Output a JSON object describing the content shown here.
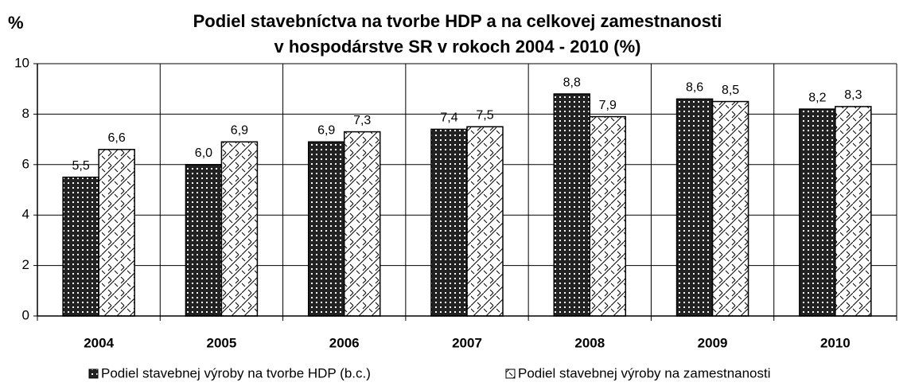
{
  "chart_data": {
    "type": "bar",
    "title": [
      "Podiel stavebníctva na tvorbe HDP a na celkovej zamestnanosti",
      "v hospodárstve SR v rokoch 2004 - 2010 (%)"
    ],
    "ylabel": "%",
    "categories": [
      "2004",
      "2005",
      "2006",
      "2007",
      "2008",
      "2009",
      "2010"
    ],
    "series": [
      {
        "name": "Podiel stavebnej výroby na tvorbe HDP (b.c.)",
        "color": "#222222",
        "values": [
          5.5,
          6.0,
          6.9,
          7.4,
          8.8,
          8.6,
          8.2
        ],
        "value_labels": [
          "5,5",
          "6,0",
          "6,9",
          "7,4",
          "8,8",
          "8,6",
          "8,2"
        ]
      },
      {
        "name": "Podiel stavebnej výroby na zamestnanosti",
        "color": "#ffffff",
        "values": [
          6.6,
          6.9,
          7.3,
          7.5,
          7.9,
          8.5,
          8.3
        ],
        "value_labels": [
          "6,6",
          "6,9",
          "7,3",
          "7,5",
          "7,9",
          "8,5",
          "8,3"
        ]
      }
    ],
    "ylim": [
      0,
      10
    ],
    "yticks": [
      0,
      2,
      4,
      6,
      8,
      10
    ],
    "grid": true,
    "legend": "bottom"
  }
}
